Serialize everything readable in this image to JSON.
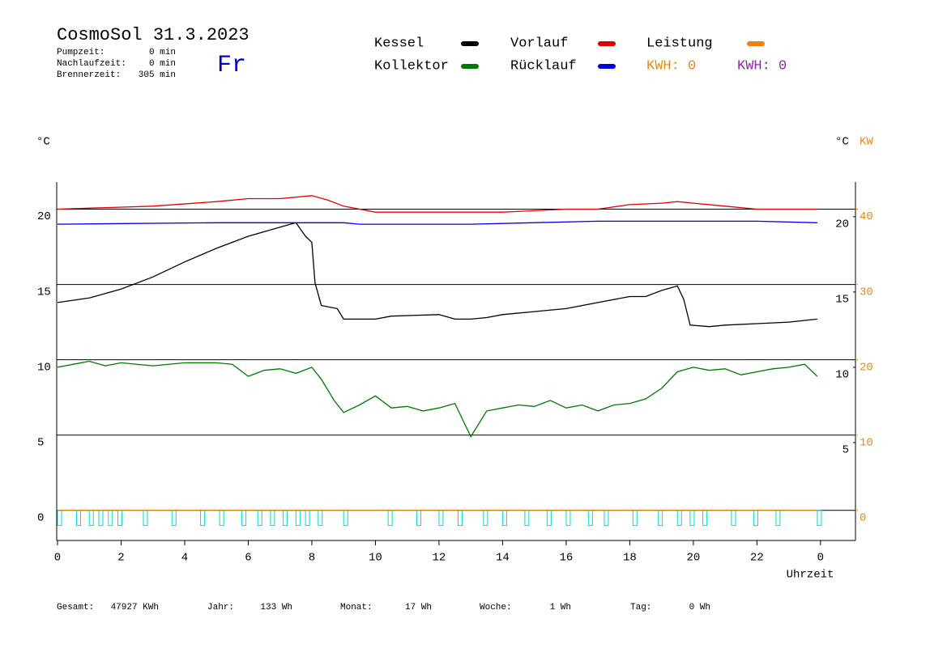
{
  "chart_data": {
    "type": "line",
    "title": "CosmoSol 31.3.2023",
    "weekday": "Fr",
    "info": [
      {
        "label": "Pumpzeit:",
        "value": "0 min"
      },
      {
        "label": "Nachlaufzeit:",
        "value": "0 min"
      },
      {
        "label": "Brennerzeit:",
        "value": "305 min"
      }
    ],
    "kwh": [
      {
        "text": "KWH: 0",
        "color": "#e08a1e"
      },
      {
        "text": "KWH: 0",
        "color": "#8a2a9a"
      }
    ],
    "footer": [
      {
        "label": "Gesamt:",
        "value": "47927 KWh"
      },
      {
        "label": "Jahr:",
        "value": "133 Wh"
      },
      {
        "label": "Monat:",
        "value": "17 Wh"
      },
      {
        "label": "Woche:",
        "value": "1 Wh"
      },
      {
        "label": "Tag:",
        "value": "0 Wh"
      }
    ],
    "ylabel": "°C",
    "y3label": "°C",
    "y2label": "KW",
    "xlabel": "Uhrzeit",
    "xlim": [
      0,
      25.1
    ],
    "xticks": [
      0,
      2,
      4,
      6,
      8,
      10,
      12,
      14,
      16,
      18,
      20,
      22,
      {
        "value": 24,
        "label": "0"
      }
    ],
    "ylim": [
      -2,
      21.8
    ],
    "yticks": [
      0,
      5,
      10,
      15,
      20
    ],
    "y2lim": [
      -4,
      43.6
    ],
    "y2ticks": [
      0,
      10,
      20,
      30,
      40
    ],
    "y3lim": [
      -1.5,
      22.3
    ],
    "y3ticks": [
      5,
      10,
      15,
      20
    ],
    "grid": true,
    "series": [
      {
        "name": "Kessel",
        "color": "#000000",
        "x": [
          0,
          1,
          2,
          3,
          4,
          5,
          6,
          7,
          7.5,
          7.8,
          8.0,
          8.1,
          8.3,
          8.8,
          9,
          10,
          10.5,
          12,
          12.5,
          13,
          13.5,
          14,
          15,
          16,
          17,
          18,
          18.5,
          19,
          19.5,
          19.7,
          19.9,
          20.5,
          21,
          22,
          23,
          23.9
        ],
        "values": [
          13.8,
          14.1,
          14.7,
          15.5,
          16.5,
          17.4,
          18.2,
          18.8,
          19.1,
          18.2,
          17.8,
          15.1,
          13.6,
          13.4,
          12.7,
          12.7,
          12.9,
          13.0,
          12.7,
          12.7,
          12.8,
          13.0,
          13.2,
          13.4,
          13.8,
          14.2,
          14.2,
          14.6,
          14.9,
          14.0,
          12.3,
          12.2,
          12.3,
          12.4,
          12.5,
          12.7
        ]
      },
      {
        "name": "Vorlauf",
        "color": "#e00000",
        "x": [
          0,
          3,
          5,
          6,
          7,
          8,
          8.5,
          9,
          10,
          12,
          14,
          16,
          17,
          18,
          19,
          19.5,
          20,
          21,
          22,
          23.9
        ],
        "values": [
          20.0,
          20.2,
          20.5,
          20.7,
          20.7,
          20.9,
          20.6,
          20.2,
          19.8,
          19.8,
          19.8,
          20.0,
          20.0,
          20.3,
          20.4,
          20.5,
          20.4,
          20.2,
          20.0,
          20.0
        ]
      },
      {
        "name": "Leistung",
        "color": "#f08010",
        "axis": "y2",
        "x": [
          0,
          23.9
        ],
        "values": [
          0,
          0
        ]
      },
      {
        "name": "Kollektor",
        "color": "#007800",
        "x": [
          0,
          0.5,
          1,
          1.5,
          2,
          3,
          4,
          5,
          5.5,
          6,
          6.5,
          7,
          7.5,
          8,
          8.3,
          8.7,
          9,
          9.5,
          10,
          10.5,
          11,
          11.5,
          12,
          12.5,
          13,
          13.5,
          14,
          14.5,
          15,
          15.5,
          16,
          16.5,
          17,
          17.5,
          18,
          18.5,
          19,
          19.5,
          20,
          20.5,
          21,
          21.5,
          22,
          22.5,
          23,
          23.5,
          23.9
        ],
        "values": [
          9.5,
          9.7,
          9.9,
          9.6,
          9.8,
          9.6,
          9.8,
          9.8,
          9.7,
          8.9,
          9.3,
          9.4,
          9.1,
          9.5,
          8.7,
          7.3,
          6.5,
          7.0,
          7.6,
          6.8,
          6.9,
          6.6,
          6.8,
          7.1,
          4.9,
          6.6,
          6.8,
          7.0,
          6.9,
          7.3,
          6.8,
          7.0,
          6.6,
          7.0,
          7.1,
          7.4,
          8.1,
          9.2,
          9.5,
          9.3,
          9.4,
          9.0,
          9.2,
          9.4,
          9.5,
          9.7,
          8.9
        ]
      },
      {
        "name": "Rücklauf",
        "color": "#0000e0",
        "x": [
          0,
          5,
          9,
          9.5,
          13,
          17,
          22,
          23.9
        ],
        "values": [
          19.0,
          19.1,
          19.1,
          19.0,
          19.0,
          19.2,
          19.2,
          19.1
        ]
      }
    ],
    "pulses": {
      "color": "#00d8e0",
      "x": [
        0,
        0.6,
        1.0,
        1.3,
        1.6,
        1.9,
        2.7,
        3.6,
        4.5,
        5.1,
        5.8,
        6.3,
        6.7,
        7.1,
        7.5,
        7.8,
        8.2,
        9.0,
        10.4,
        11.3,
        12.0,
        12.6,
        13.4,
        14.0,
        14.7,
        15.4,
        16.0,
        16.7,
        17.2,
        18.1,
        18.9,
        19.5,
        19.9,
        20.3,
        21.2,
        21.9,
        22.6,
        23.9
      ],
      "values": [
        -1,
        -1,
        -1,
        -1,
        -1,
        -1,
        -1,
        -1,
        -1,
        -1,
        -1,
        -1,
        -1,
        -1,
        -1,
        -1,
        -1,
        -1,
        -1,
        -1,
        -1,
        -1,
        -1,
        -1,
        -1,
        -1,
        -1,
        -1,
        -1,
        -1,
        -1,
        -1,
        -1,
        -1,
        -1,
        -1,
        -1,
        -1
      ]
    }
  }
}
